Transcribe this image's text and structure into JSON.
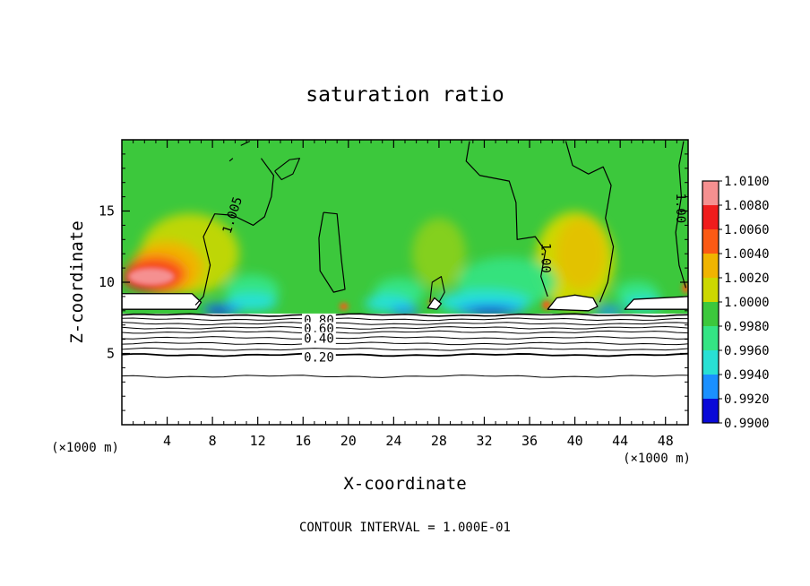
{
  "chart_data": {
    "type": "heatmap",
    "title": "saturation ratio",
    "xlabel": "X-coordinate",
    "ylabel": "Z-coordinate",
    "x_unit_label": "(×1000 m)",
    "x_unit_label_right": "(×1000 m)",
    "xlim": [
      0,
      50
    ],
    "ylim": [
      0,
      20
    ],
    "x_ticks": [
      4,
      8,
      12,
      16,
      20,
      24,
      28,
      32,
      36,
      40,
      44,
      48
    ],
    "y_ticks": [
      5,
      10,
      15
    ],
    "footer": "CONTOUR INTERVAL = 1.000E-01",
    "colorbar": {
      "ticks": [
        "1.0100",
        "1.0080",
        "1.0060",
        "1.0040",
        "1.0020",
        "1.0000",
        "0.9980",
        "0.9960",
        "0.9940",
        "0.9920",
        "0.9900"
      ],
      "colors": [
        "#f59090",
        "#f01c1c",
        "#fc5a14",
        "#f0b400",
        "#ccd800",
        "#3cc83c",
        "#34e484",
        "#28e0d4",
        "#1a90ff",
        "#0a0ad8",
        "#7a18b0"
      ]
    },
    "contour_labels": [
      {
        "text": "1.005",
        "x": 9.8,
        "z": 14.7,
        "angle": -72
      },
      {
        "text": "1.00",
        "x": 37.4,
        "z": 11.7,
        "angle": 90
      },
      {
        "text": "1.00",
        "x": 49.3,
        "z": 15.2,
        "angle": 90
      },
      {
        "text": "0.80",
        "x": 17.4,
        "z": 7.3,
        "angle": 0
      },
      {
        "text": "0.60",
        "x": 17.4,
        "z": 6.7,
        "angle": 0
      },
      {
        "text": "0.40",
        "x": 17.4,
        "z": 6.0,
        "angle": 0
      },
      {
        "text": "0.20",
        "x": 17.4,
        "z": 4.7,
        "angle": 0
      }
    ],
    "contour_levels_below": [
      7.7,
      7.4,
      7.1,
      6.8,
      6.5,
      6.1,
      5.7,
      5.3,
      4.9,
      3.4
    ],
    "cloud_base_z": 7.8,
    "grid": false,
    "legend": "right"
  }
}
